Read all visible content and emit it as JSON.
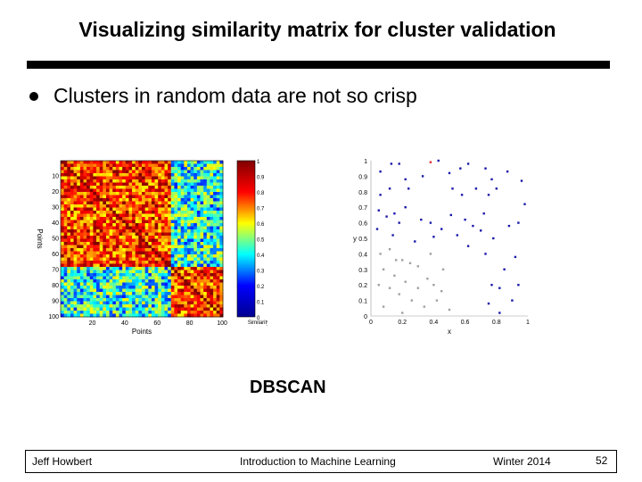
{
  "slide": {
    "title": "Visualizing similarity matrix for cluster validation",
    "bullet": "Clusters in random data are not so crisp",
    "caption": "DBSCAN",
    "page_number": "52"
  },
  "footer": {
    "author": "Jeff Howbert",
    "course": "Introduction to Machine Learning",
    "term": "Winter 2014"
  },
  "chart_data": [
    {
      "type": "heatmap",
      "title": "",
      "xlabel": "Points",
      "ylabel": "Points",
      "x_ticks": [
        20,
        40,
        60,
        80,
        100
      ],
      "y_ticks": [
        10,
        20,
        30,
        40,
        50,
        60,
        70,
        80,
        90,
        100
      ],
      "n_points": 100,
      "cluster_boundary": 68,
      "colorbar": {
        "label": "Similarity",
        "ticks": [
          "0",
          "0.1",
          "0.2",
          "0.3",
          "0.4",
          "0.5",
          "0.6",
          "0.7",
          "0.8",
          "0.9",
          "1"
        ],
        "range": [
          0,
          1
        ],
        "colormap": [
          "#00008f",
          "#0000ff",
          "#00ffff",
          "#ffff00",
          "#ff0000",
          "#800000"
        ]
      }
    },
    {
      "type": "scatter",
      "title": "",
      "xlabel": "x",
      "ylabel": "y",
      "xlim": [
        0,
        1
      ],
      "ylim": [
        0,
        1
      ],
      "x_ticks": [
        "0",
        "0.2",
        "0.4",
        "0.6",
        "0.8",
        "1"
      ],
      "y_ticks": [
        "0",
        "0.1",
        "0.2",
        "0.3",
        "0.4",
        "0.5",
        "0.6",
        "0.7",
        "0.8",
        "0.9",
        "1"
      ],
      "series": [
        {
          "color": "#1a1aaa",
          "points": [
            [
              0.06,
              0.93
            ],
            [
              0.13,
              0.98
            ],
            [
              0.18,
              0.98
            ],
            [
              0.22,
              0.88
            ],
            [
              0.12,
              0.82
            ],
            [
              0.06,
              0.78
            ],
            [
              0.24,
              0.82
            ],
            [
              0.33,
              0.9
            ],
            [
              0.43,
              1.0
            ],
            [
              0.5,
              0.92
            ],
            [
              0.57,
              0.95
            ],
            [
              0.62,
              0.98
            ],
            [
              0.52,
              0.82
            ],
            [
              0.58,
              0.78
            ],
            [
              0.67,
              0.82
            ],
            [
              0.73,
              0.95
            ],
            [
              0.77,
              0.88
            ],
            [
              0.8,
              0.82
            ],
            [
              0.87,
              0.93
            ],
            [
              0.96,
              0.87
            ],
            [
              0.75,
              0.78
            ],
            [
              0.98,
              0.72
            ],
            [
              0.05,
              0.68
            ],
            [
              0.1,
              0.64
            ],
            [
              0.15,
              0.66
            ],
            [
              0.18,
              0.6
            ],
            [
              0.22,
              0.7
            ],
            [
              0.32,
              0.62
            ],
            [
              0.38,
              0.6
            ],
            [
              0.45,
              0.56
            ],
            [
              0.51,
              0.65
            ],
            [
              0.6,
              0.62
            ],
            [
              0.65,
              0.58
            ],
            [
              0.72,
              0.66
            ],
            [
              0.7,
              0.55
            ],
            [
              0.78,
              0.5
            ],
            [
              0.88,
              0.58
            ],
            [
              0.94,
              0.6
            ],
            [
              0.04,
              0.56
            ],
            [
              0.14,
              0.52
            ],
            [
              0.28,
              0.48
            ],
            [
              0.4,
              0.51
            ],
            [
              0.55,
              0.52
            ],
            [
              0.62,
              0.45
            ],
            [
              0.73,
              0.4
            ],
            [
              0.92,
              0.38
            ],
            [
              0.85,
              0.3
            ],
            [
              0.77,
              0.2
            ],
            [
              0.82,
              0.18
            ],
            [
              0.94,
              0.2
            ],
            [
              0.75,
              0.08
            ],
            [
              0.9,
              0.1
            ],
            [
              0.82,
              0.02
            ]
          ]
        },
        {
          "color": "#a0a0a0",
          "points": [
            [
              0.06,
              0.4
            ],
            [
              0.12,
              0.43
            ],
            [
              0.2,
              0.36
            ],
            [
              0.25,
              0.34
            ],
            [
              0.3,
              0.32
            ],
            [
              0.08,
              0.3
            ],
            [
              0.15,
              0.26
            ],
            [
              0.22,
              0.22
            ],
            [
              0.3,
              0.18
            ],
            [
              0.36,
              0.24
            ],
            [
              0.4,
              0.2
            ],
            [
              0.45,
              0.16
            ],
            [
              0.05,
              0.2
            ],
            [
              0.12,
              0.18
            ],
            [
              0.18,
              0.14
            ],
            [
              0.26,
              0.1
            ],
            [
              0.34,
              0.06
            ],
            [
              0.42,
              0.1
            ],
            [
              0.08,
              0.06
            ],
            [
              0.2,
              0.02
            ],
            [
              0.5,
              0.04
            ],
            [
              0.38,
              0.4
            ],
            [
              0.16,
              0.36
            ],
            [
              0.46,
              0.3
            ]
          ]
        },
        {
          "color": "#e03030",
          "points": [
            [
              0.38,
              0.99
            ]
          ]
        }
      ]
    }
  ]
}
